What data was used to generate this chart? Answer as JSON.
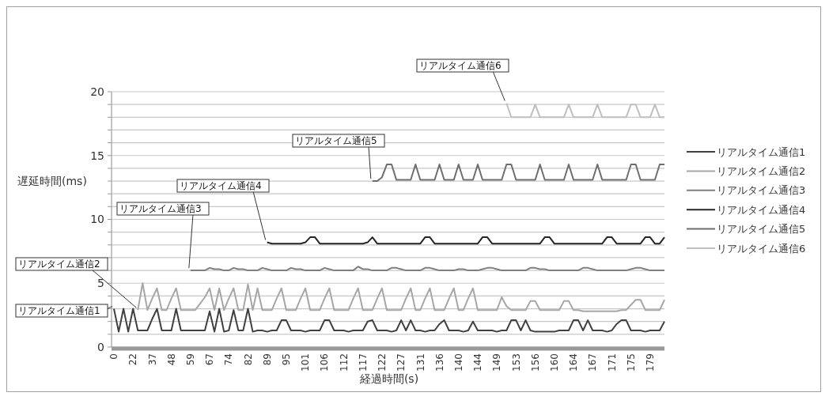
{
  "chart_data": {
    "type": "line",
    "xlabel": "経過時間(s)",
    "ylabel": "遅延時間(ms)",
    "categories": [
      "0",
      null,
      null,
      null,
      "22",
      null,
      null,
      null,
      "37",
      null,
      null,
      null,
      "48",
      null,
      null,
      null,
      "59",
      null,
      null,
      null,
      "67",
      null,
      null,
      null,
      "74",
      null,
      null,
      null,
      "82",
      null,
      null,
      null,
      "89",
      null,
      null,
      null,
      "95",
      null,
      null,
      null,
      "101",
      null,
      null,
      null,
      "106",
      null,
      null,
      null,
      "112",
      null,
      null,
      null,
      "117",
      null,
      null,
      null,
      "122",
      null,
      null,
      null,
      "127",
      null,
      null,
      null,
      "131",
      null,
      null,
      null,
      "136",
      null,
      null,
      null,
      "140",
      null,
      null,
      null,
      "144",
      null,
      null,
      null,
      "149",
      null,
      null,
      null,
      "153",
      null,
      null,
      null,
      "156",
      null,
      null,
      null,
      "160",
      null,
      null,
      null,
      "164",
      null,
      null,
      null,
      "167",
      null,
      null,
      null,
      "171",
      null,
      null,
      null,
      "175",
      null,
      null,
      null,
      "179",
      null,
      null,
      null
    ],
    "ylim": [
      0,
      20
    ],
    "yticks": [
      0,
      {
        "value": 1,
        "label": null
      },
      {
        "value": 2,
        "label": null
      },
      {
        "value": 3,
        "label": null
      },
      {
        "value": 4,
        "label": null
      },
      5,
      {
        "value": 6,
        "label": null
      },
      {
        "value": 7,
        "label": null
      },
      {
        "value": 8,
        "label": null
      },
      {
        "value": 9,
        "label": null
      },
      10,
      {
        "value": 11,
        "label": null
      },
      {
        "value": 12,
        "label": null
      },
      {
        "value": 13,
        "label": null
      },
      {
        "value": 14,
        "label": null
      },
      15,
      {
        "value": 16,
        "label": null
      },
      {
        "value": 17,
        "label": null
      },
      {
        "value": 18,
        "label": null
      },
      {
        "value": 19,
        "label": null
      },
      20
    ],
    "grid": "y",
    "legend": "right",
    "marker": "none",
    "line_style": "solid",
    "series": [
      {
        "name": "リアルタイム通信1",
        "color": "#404040",
        "values": [
          3.0,
          1.2,
          3.0,
          1.2,
          3.0,
          1.3,
          1.3,
          1.3,
          2.2,
          3.0,
          1.3,
          1.3,
          1.3,
          3.0,
          1.3,
          1.3,
          1.3,
          1.3,
          1.3,
          1.3,
          2.8,
          1.2,
          3.0,
          1.2,
          1.3,
          2.9,
          1.3,
          1.3,
          3.0,
          1.2,
          1.3,
          1.3,
          1.2,
          1.3,
          1.3,
          2.1,
          2.1,
          1.3,
          1.3,
          1.3,
          1.2,
          1.3,
          1.3,
          1.3,
          2.1,
          2.1,
          1.3,
          1.3,
          1.3,
          1.2,
          1.3,
          1.3,
          1.3,
          2.0,
          2.1,
          1.3,
          1.3,
          1.3,
          1.2,
          1.3,
          2.1,
          1.3,
          2.1,
          1.3,
          1.3,
          1.2,
          1.3,
          1.3,
          1.8,
          2.1,
          1.3,
          1.3,
          1.3,
          1.2,
          1.3,
          2.0,
          1.3,
          1.3,
          1.3,
          1.3,
          1.2,
          1.3,
          1.3,
          2.1,
          2.1,
          1.3,
          2.1,
          1.3,
          1.2,
          1.2,
          1.2,
          1.2,
          1.2,
          1.3,
          1.3,
          1.3,
          2.1,
          2.1,
          1.3,
          2.1,
          1.3,
          1.3,
          1.3,
          1.2,
          1.3,
          1.8,
          2.1,
          2.1,
          1.3,
          1.3,
          1.3,
          1.2,
          1.3,
          1.3,
          1.3,
          2.0
        ]
      },
      {
        "name": "リアルタイム通信2",
        "color": "#a6a6a6",
        "values": [
          null,
          null,
          null,
          null,
          null,
          2.9,
          5.0,
          2.9,
          3.8,
          4.6,
          2.9,
          2.9,
          3.8,
          4.6,
          2.9,
          2.9,
          2.9,
          2.9,
          3.4,
          3.9,
          4.6,
          2.9,
          4.6,
          2.9,
          3.8,
          4.6,
          2.9,
          2.9,
          4.9,
          2.9,
          4.6,
          2.9,
          2.9,
          2.9,
          3.8,
          4.6,
          2.9,
          2.9,
          2.9,
          3.8,
          4.6,
          2.9,
          2.9,
          2.9,
          3.8,
          4.6,
          2.9,
          2.9,
          2.9,
          2.9,
          3.8,
          4.6,
          2.9,
          2.9,
          2.9,
          3.8,
          4.6,
          2.9,
          2.9,
          2.9,
          2.9,
          3.8,
          4.6,
          2.9,
          2.9,
          3.8,
          4.6,
          2.9,
          2.9,
          2.9,
          3.8,
          4.6,
          2.9,
          2.9,
          3.8,
          4.6,
          2.9,
          2.9,
          2.9,
          2.9,
          2.9,
          3.9,
          3.2,
          2.9,
          2.9,
          2.9,
          2.9,
          3.6,
          3.6,
          2.9,
          2.9,
          2.9,
          2.9,
          2.9,
          3.6,
          3.6,
          2.9,
          2.9,
          2.8,
          2.8,
          2.8,
          2.8,
          2.8,
          2.8,
          2.8,
          2.8,
          2.9,
          2.9,
          3.3,
          3.7,
          3.7,
          2.9,
          2.9,
          2.9,
          2.9,
          3.7
        ]
      },
      {
        "name": "リアルタイム通信3",
        "color": "#7f7f7f",
        "values": [
          null,
          null,
          null,
          null,
          null,
          null,
          null,
          null,
          null,
          null,
          null,
          null,
          null,
          null,
          null,
          null,
          6.0,
          6.0,
          6.0,
          6.0,
          6.2,
          6.1,
          6.1,
          6.0,
          6.0,
          6.2,
          6.1,
          6.1,
          6.0,
          6.0,
          6.0,
          6.2,
          6.1,
          6.0,
          6.0,
          6.0,
          6.0,
          6.2,
          6.1,
          6.1,
          6.0,
          6.0,
          6.0,
          6.0,
          6.2,
          6.1,
          6.0,
          6.0,
          6.0,
          6.0,
          6.0,
          6.3,
          6.1,
          6.1,
          6.0,
          6.0,
          6.0,
          6.0,
          6.2,
          6.2,
          6.1,
          6.0,
          6.0,
          6.0,
          6.0,
          6.2,
          6.2,
          6.1,
          6.0,
          6.0,
          6.0,
          6.0,
          6.1,
          6.1,
          6.0,
          6.0,
          6.0,
          6.1,
          6.2,
          6.2,
          6.1,
          6.0,
          6.0,
          6.0,
          6.0,
          6.0,
          6.0,
          6.2,
          6.2,
          6.1,
          6.1,
          6.0,
          6.0,
          6.0,
          6.0,
          6.0,
          6.0,
          6.0,
          6.2,
          6.2,
          6.1,
          6.0,
          6.0,
          6.0,
          6.0,
          6.0,
          6.0,
          6.0,
          6.1,
          6.2,
          6.2,
          6.1,
          6.0,
          6.0,
          6.0,
          6.0
        ]
      },
      {
        "name": "リアルタイム通信4",
        "color": "#262626",
        "values": [
          null,
          null,
          null,
          null,
          null,
          null,
          null,
          null,
          null,
          null,
          null,
          null,
          null,
          null,
          null,
          null,
          null,
          null,
          null,
          null,
          null,
          null,
          null,
          null,
          null,
          null,
          null,
          null,
          null,
          null,
          null,
          null,
          8.2,
          8.1,
          8.1,
          8.1,
          8.1,
          8.1,
          8.1,
          8.1,
          8.2,
          8.6,
          8.6,
          8.1,
          8.1,
          8.1,
          8.1,
          8.1,
          8.1,
          8.1,
          8.1,
          8.1,
          8.1,
          8.2,
          8.6,
          8.1,
          8.1,
          8.1,
          8.1,
          8.1,
          8.1,
          8.1,
          8.1,
          8.1,
          8.1,
          8.6,
          8.6,
          8.1,
          8.1,
          8.1,
          8.1,
          8.1,
          8.1,
          8.1,
          8.1,
          8.1,
          8.1,
          8.6,
          8.6,
          8.1,
          8.1,
          8.1,
          8.1,
          8.1,
          8.1,
          8.1,
          8.1,
          8.1,
          8.1,
          8.1,
          8.6,
          8.6,
          8.1,
          8.1,
          8.1,
          8.1,
          8.1,
          8.1,
          8.1,
          8.1,
          8.1,
          8.1,
          8.1,
          8.6,
          8.6,
          8.1,
          8.1,
          8.1,
          8.1,
          8.1,
          8.1,
          8.6,
          8.6,
          8.1,
          8.1,
          8.6
        ]
      },
      {
        "name": "リアルタイム通信5",
        "color": "#6e6e6e",
        "values": [
          null,
          null,
          null,
          null,
          null,
          null,
          null,
          null,
          null,
          null,
          null,
          null,
          null,
          null,
          null,
          null,
          null,
          null,
          null,
          null,
          null,
          null,
          null,
          null,
          null,
          null,
          null,
          null,
          null,
          null,
          null,
          null,
          null,
          null,
          null,
          null,
          null,
          null,
          null,
          null,
          null,
          null,
          null,
          null,
          null,
          null,
          null,
          null,
          null,
          null,
          null,
          null,
          null,
          null,
          13.0,
          13.0,
          13.3,
          14.3,
          14.3,
          13.1,
          13.1,
          13.1,
          13.1,
          14.3,
          13.1,
          13.1,
          13.1,
          13.1,
          14.3,
          13.1,
          13.1,
          13.1,
          14.3,
          13.1,
          13.1,
          13.1,
          14.3,
          13.1,
          13.1,
          13.1,
          13.1,
          13.1,
          14.3,
          14.3,
          13.1,
          13.1,
          13.1,
          13.1,
          13.1,
          14.3,
          13.1,
          13.1,
          13.1,
          13.1,
          13.1,
          14.3,
          13.1,
          13.1,
          13.1,
          13.1,
          13.1,
          14.3,
          13.1,
          13.1,
          13.1,
          13.1,
          13.1,
          13.1,
          14.3,
          14.3,
          13.1,
          13.1,
          13.1,
          13.1,
          14.3,
          14.3
        ]
      },
      {
        "name": "リアルタイム通信6",
        "color": "#bfbfbf",
        "values": [
          null,
          null,
          null,
          null,
          null,
          null,
          null,
          null,
          null,
          null,
          null,
          null,
          null,
          null,
          null,
          null,
          null,
          null,
          null,
          null,
          null,
          null,
          null,
          null,
          null,
          null,
          null,
          null,
          null,
          null,
          null,
          null,
          null,
          null,
          null,
          null,
          null,
          null,
          null,
          null,
          null,
          null,
          null,
          null,
          null,
          null,
          null,
          null,
          null,
          null,
          null,
          null,
          null,
          null,
          null,
          null,
          null,
          null,
          null,
          null,
          null,
          null,
          null,
          null,
          null,
          null,
          null,
          null,
          null,
          null,
          null,
          null,
          null,
          null,
          null,
          null,
          null,
          null,
          null,
          null,
          null,
          null,
          19.1,
          18.0,
          18.0,
          18.0,
          18.0,
          18.0,
          19.0,
          18.0,
          18.0,
          18.0,
          18.0,
          18.0,
          18.0,
          19.0,
          18.0,
          18.0,
          18.0,
          18.0,
          18.0,
          19.0,
          18.0,
          18.0,
          18.0,
          18.0,
          18.0,
          18.0,
          19.0,
          19.0,
          18.0,
          18.0,
          18.0,
          19.0,
          18.0,
          18.0
        ]
      }
    ]
  }
}
